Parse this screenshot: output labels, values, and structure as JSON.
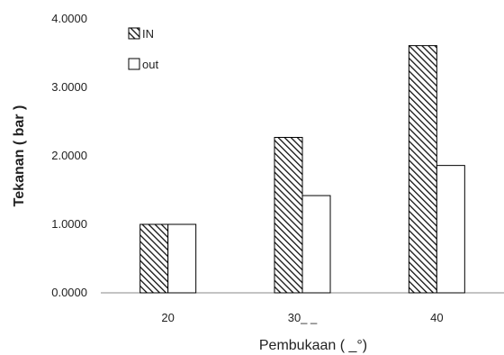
{
  "chart_data": {
    "type": "bar",
    "categories": [
      "20",
      "30_ _",
      "40"
    ],
    "series": [
      {
        "name": "IN",
        "values": [
          1.0,
          2.27,
          3.61
        ]
      },
      {
        "name": "out",
        "values": [
          1.0,
          1.42,
          1.86
        ]
      }
    ],
    "xlabel": "Pembukaan ( _°)",
    "ylabel": "Tekanan ( bar )",
    "ylim": [
      0,
      4
    ],
    "yticks": [
      "0.0000",
      "1.0000",
      "2.0000",
      "3.0000",
      "4.0000"
    ],
    "grid": false,
    "legend_position": "top-left",
    "series_styles": [
      {
        "fill": "diagonal-hatch",
        "stroke": "#000000"
      },
      {
        "fill": "#ffffff",
        "stroke": "#000000"
      }
    ]
  }
}
